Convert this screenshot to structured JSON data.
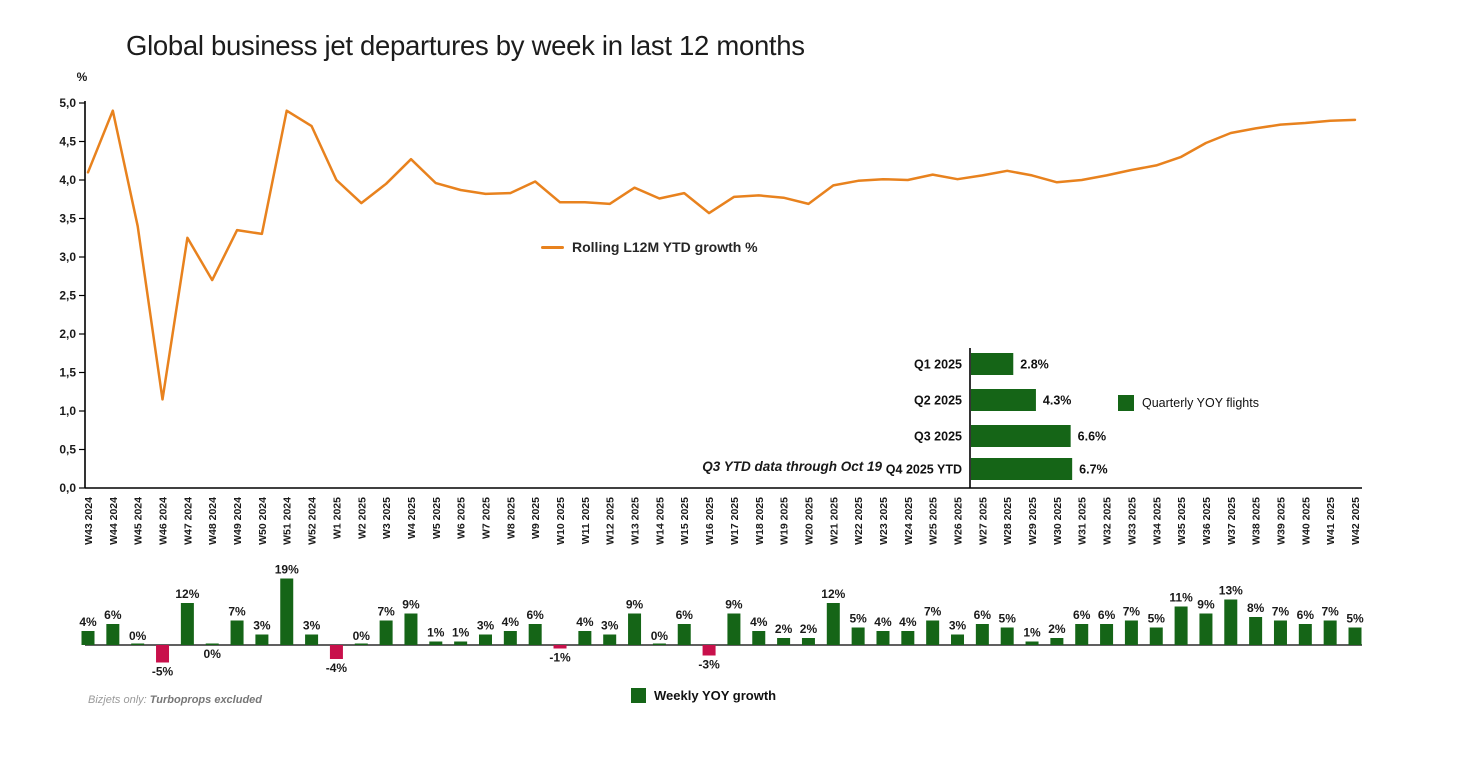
{
  "title": "Global business jet departures by week in last 12 months",
  "y_axis_unit": "%",
  "y_axis_ticks": [
    "5,0",
    "4,5",
    "4,0",
    "3,5",
    "3,0",
    "2,5",
    "2,0",
    "1,5",
    "1,0",
    "0,5",
    "0,0"
  ],
  "weeks": [
    "W43 2024",
    "W44 2024",
    "W45 2024",
    "W46 2024",
    "W47 2024",
    "W48 2024",
    "W49 2024",
    "W50 2024",
    "W51 2024",
    "W52 2024",
    "W1 2025",
    "W2 2025",
    "W3 2025",
    "W4 2025",
    "W5 2025",
    "W6 2025",
    "W7 2025",
    "W8 2025",
    "W9 2025",
    "W10 2025",
    "W11 2025",
    "W12 2025",
    "W13 2025",
    "W14 2025",
    "W15 2025",
    "W16 2025",
    "W17 2025",
    "W18 2025",
    "W19 2025",
    "W20 2025",
    "W21 2025",
    "W22 2025",
    "W23 2025",
    "W24 2025",
    "W25 2025",
    "W26 2025",
    "W27 2025",
    "W28 2025",
    "W29 2025",
    "W30 2025",
    "W31 2025",
    "W32 2025",
    "W33 2025",
    "W34 2025",
    "W35 2025",
    "W36 2025",
    "W37 2025",
    "W38 2025",
    "W39 2025",
    "W40 2025",
    "W41 2025",
    "W42 2025"
  ],
  "chart_data": [
    {
      "type": "line",
      "name": "Rolling L12M YTD growth %",
      "color": "#E8821E",
      "ylim": [
        0,
        5
      ],
      "x_categories": "weeks",
      "values": [
        4.1,
        4.9,
        3.4,
        1.15,
        3.25,
        2.7,
        3.35,
        3.3,
        4.9,
        4.7,
        4.0,
        3.7,
        3.95,
        4.27,
        3.96,
        3.87,
        3.82,
        3.83,
        3.98,
        3.71,
        3.71,
        3.69,
        3.9,
        3.76,
        3.83,
        3.57,
        3.78,
        3.8,
        3.77,
        3.69,
        3.93,
        3.99,
        4.01,
        4.0,
        4.07,
        4.01,
        4.06,
        4.12,
        4.06,
        3.97,
        4.0,
        4.06,
        4.13,
        4.19,
        4.3,
        4.48,
        4.61,
        4.67,
        4.72,
        4.74,
        4.77,
        4.78
      ]
    },
    {
      "type": "bar",
      "name": "Weekly YOY growth",
      "positive_color": "#156517",
      "negative_color": "#C8104B",
      "x_categories": "weeks",
      "values": [
        4,
        6,
        0,
        -5,
        12,
        0,
        7,
        3,
        19,
        3,
        -4,
        0,
        7,
        9,
        1,
        1,
        3,
        4,
        6,
        -1,
        4,
        3,
        9,
        0,
        6,
        -3,
        9,
        4,
        2,
        2,
        12,
        5,
        4,
        4,
        7,
        3,
        6,
        5,
        1,
        2,
        6,
        6,
        7,
        5,
        11,
        9,
        13,
        8,
        7,
        6,
        7,
        5
      ],
      "labels": [
        "4%",
        "6%",
        "0%",
        "-5%",
        "12%",
        "0%",
        "7%",
        "3%",
        "19%",
        "3%",
        "-4%",
        "0%",
        "7%",
        "9%",
        "1%",
        "1%",
        "3%",
        "4%",
        "6%",
        "-1%",
        "4%",
        "3%",
        "9%",
        "0%",
        "6%",
        "-3%",
        "9%",
        "4%",
        "2%",
        "2%",
        "12%",
        "5%",
        "4%",
        "4%",
        "7%",
        "3%",
        "6%",
        "5%",
        "1%",
        "2%",
        "6%",
        "6%",
        "7%",
        "5%",
        "11%",
        "9%",
        "13%",
        "8%",
        "7%",
        "6%",
        "7%",
        "5%"
      ],
      "labels_below_axis": [
        3,
        5,
        10,
        19,
        25
      ]
    },
    {
      "type": "bar",
      "orientation": "horizontal",
      "name": "Quarterly YOY flights",
      "color": "#156517",
      "categories": [
        "Q1 2025",
        "Q2 2025",
        "Q3 2025",
        "Q4 2025 YTD"
      ],
      "values": [
        2.8,
        4.3,
        6.6,
        6.7
      ],
      "labels": [
        "2.8%",
        "4.3%",
        "6.6%",
        "6.7%"
      ]
    }
  ],
  "legends": {
    "line": "Rolling L12M YTD growth %",
    "quarterly": "Quarterly YOY flights",
    "weekly": "Weekly YOY growth"
  },
  "annotations": {
    "q3_note": "Q3 YTD data through Oct 19"
  },
  "footnote": {
    "prefix": "Bizjets only: ",
    "emphasis": "Turboprops excluded"
  }
}
